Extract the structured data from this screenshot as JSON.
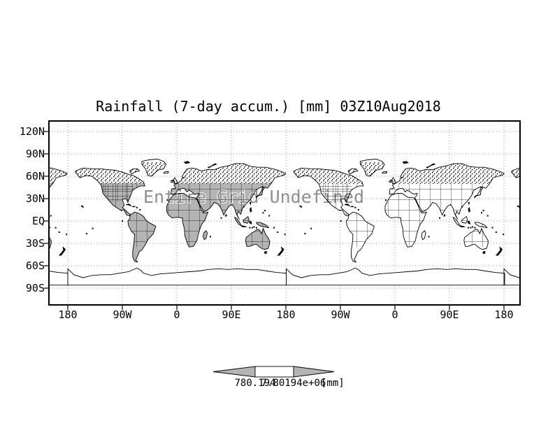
{
  "title": "Rainfall (7-day accum.) [mm] 03Z10Aug2018",
  "watermark": "Entire Grid Undefined",
  "axes": {
    "y_ticks": [
      "120N",
      "90N",
      "60N",
      "30N",
      "EQ",
      "30S",
      "60S",
      "90S"
    ],
    "x_ticks": [
      "180",
      "90W",
      "0",
      "90E",
      "180",
      "90W",
      "0",
      "90E",
      "180"
    ]
  },
  "colorbar": {
    "left_label": "780.194",
    "right_label": "7.80194e+06",
    "unit_label": "[mm]",
    "fill_color": "#b4b4b4"
  },
  "colors": {
    "background": "#ffffff",
    "land_fill": "#b4b4b4",
    "coastline": "#000000",
    "grid": "#999999",
    "watermark": "#8f8f8f",
    "frame": "#000000"
  },
  "chart_data": {
    "type": "map",
    "title": "Rainfall (7-day accum.) [mm] 03Z10Aug2018",
    "variable": "Rainfall (7-day accumulation)",
    "units": "mm",
    "valid_time": "03Z10Aug2018",
    "data_status": "Entire Grid Undefined",
    "x_axis": {
      "ticks": [
        "180",
        "90W",
        "0",
        "90E",
        "180",
        "90W",
        "0",
        "90E",
        "180"
      ],
      "longitude_span_deg": 720,
      "map_copies": 2
    },
    "y_axis": {
      "ticks": [
        "120N",
        "90N",
        "60N",
        "30N",
        "EQ",
        "30S",
        "60S",
        "90S"
      ]
    },
    "grid": "dotted",
    "legend": {
      "type": "colorbar-arrows",
      "boundary_labels": [
        "780.194",
        "7.80194e+06"
      ],
      "unit": "[mm]"
    }
  }
}
